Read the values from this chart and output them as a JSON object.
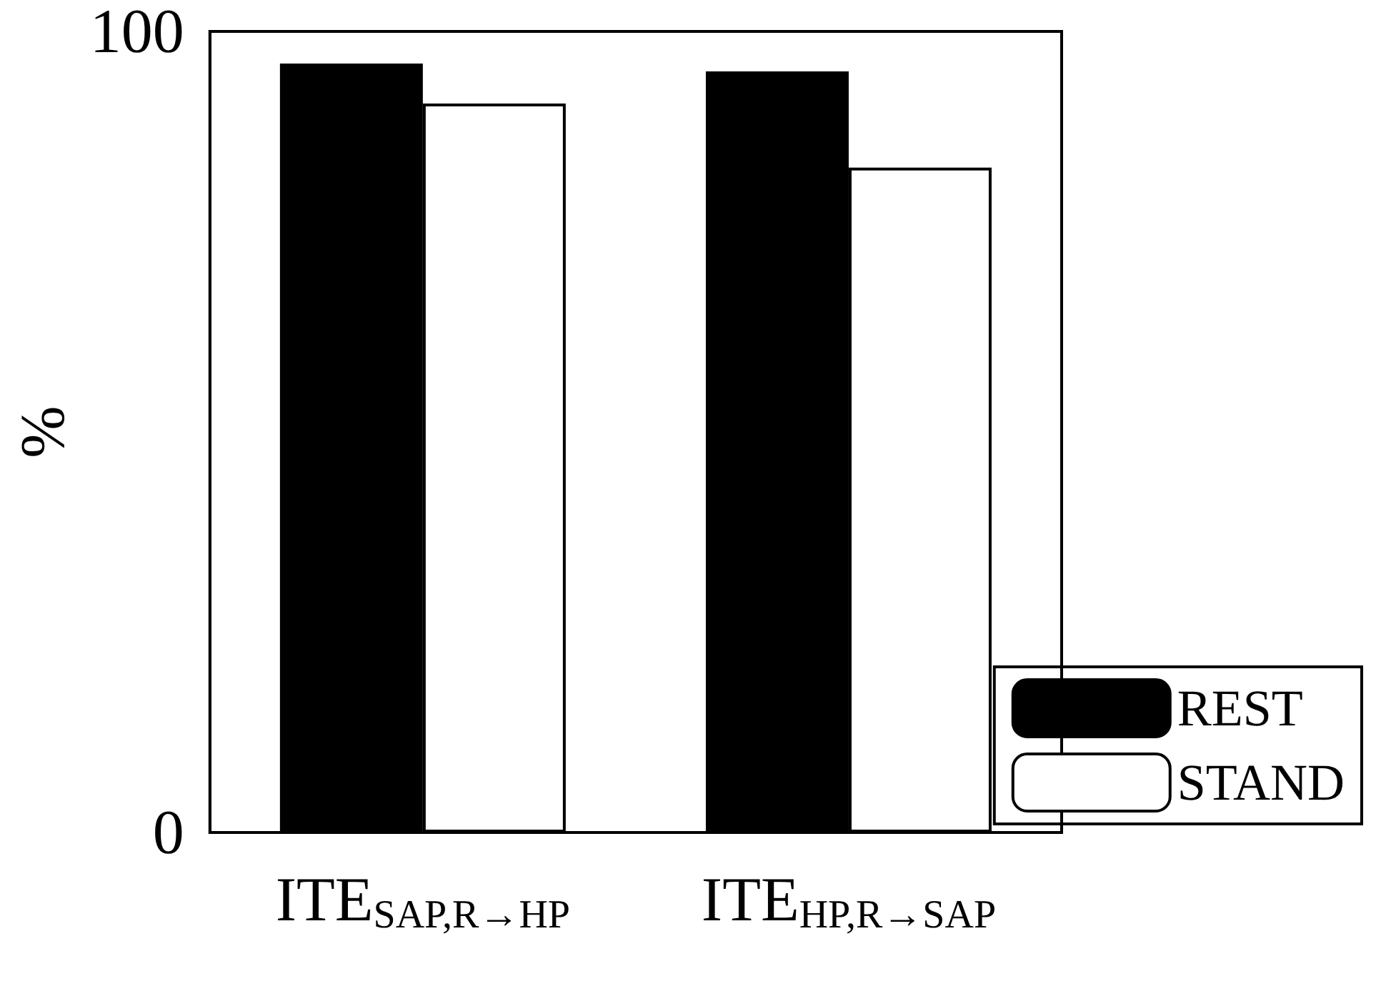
{
  "chart_data": {
    "type": "bar",
    "ylabel": "%",
    "categories": [
      "ITE$_{SAP,R→HP}$",
      "ITE$_{HP,R→SAP}$"
    ],
    "series": [
      {
        "name": "REST",
        "color": "#000000",
        "values": [
          96,
          95
        ]
      },
      {
        "name": "STAND",
        "color": "#ffffff",
        "values": [
          91,
          83
        ]
      }
    ],
    "ylim": [
      0,
      100
    ],
    "yticks": [
      0,
      100
    ],
    "grid": false,
    "legend": "bottom right"
  }
}
